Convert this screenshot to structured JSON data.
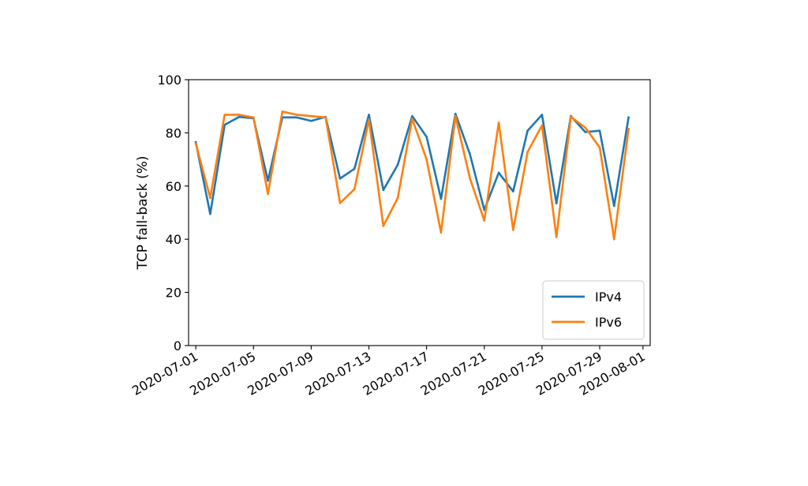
{
  "chart_data": {
    "type": "line",
    "title": "",
    "xlabel": "",
    "ylabel": "TCP fall-back (%)",
    "ylim": [
      0,
      100
    ],
    "xlim": [
      "2020-06-30T12:00",
      "2020-08-01T12:00"
    ],
    "y_ticks": [
      "0",
      "20",
      "40",
      "60",
      "80",
      "100"
    ],
    "x_ticks": [
      "2020-07-01",
      "2020-07-05",
      "2020-07-09",
      "2020-07-13",
      "2020-07-17",
      "2020-07-21",
      "2020-07-25",
      "2020-07-29",
      "2020-08-01"
    ],
    "grid": false,
    "legend_position": "lower-right",
    "x": [
      "2020-07-01",
      "2020-07-02",
      "2020-07-03",
      "2020-07-04",
      "2020-07-05",
      "2020-07-06",
      "2020-07-07",
      "2020-07-08",
      "2020-07-09",
      "2020-07-10",
      "2020-07-11",
      "2020-07-12",
      "2020-07-13",
      "2020-07-14",
      "2020-07-15",
      "2020-07-16",
      "2020-07-17",
      "2020-07-18",
      "2020-07-19",
      "2020-07-20",
      "2020-07-21",
      "2020-07-22",
      "2020-07-23",
      "2020-07-24",
      "2020-07-25",
      "2020-07-26",
      "2020-07-27",
      "2020-07-28",
      "2020-07-29",
      "2020-07-30",
      "2020-07-31"
    ],
    "series": [
      {
        "name": "IPv4",
        "color": "#1f77b4",
        "values": [
          76.5,
          49.5,
          83.0,
          86.0,
          85.5,
          62.0,
          85.8,
          85.8,
          84.5,
          86.0,
          62.8,
          66.5,
          86.8,
          58.5,
          68.0,
          86.3,
          78.5,
          55.2,
          87.2,
          72.0,
          51.0,
          65.0,
          58.0,
          80.8,
          86.8,
          53.5,
          86.3,
          80.3,
          80.8,
          52.5,
          85.8
        ]
      },
      {
        "name": "IPv6",
        "color": "#ff7f0e",
        "values": [
          76.0,
          55.5,
          86.8,
          86.8,
          85.8,
          57.0,
          88.0,
          86.8,
          86.3,
          85.8,
          53.6,
          58.8,
          85.0,
          45.0,
          55.5,
          85.3,
          70.0,
          42.5,
          86.3,
          63.0,
          47.0,
          83.8,
          43.5,
          72.8,
          82.8,
          40.8,
          86.0,
          82.0,
          74.5,
          40.0,
          81.5
        ]
      }
    ]
  }
}
